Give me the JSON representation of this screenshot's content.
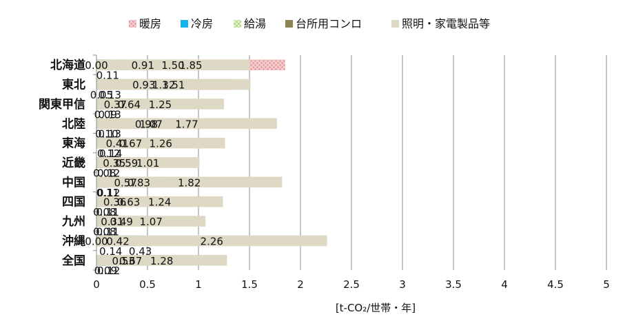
{
  "chart_data": {
    "type": "bar",
    "orientation": "horizontal",
    "stacked": true,
    "categories": [
      "北海道",
      "東北",
      "関東甲信",
      "北陸",
      "東海",
      "近畿",
      "中国",
      "四国",
      "九州",
      "沖縄",
      "全国"
    ],
    "series": [
      {
        "name": "暖房",
        "values": [
          1.85,
          1.32,
          0.37,
          1.07,
          0.41,
          0.35,
          0.57,
          0.36,
          0.31,
          0.0,
          0.53
        ],
        "color": "#e8a3a6",
        "pattern": "dots"
      },
      {
        "name": "冷房",
        "values": [
          0.0,
          0.05,
          0.09,
          0.1,
          0.12,
          0.08,
          0.11,
          0.08,
          0.08,
          0.43,
          0.09
        ],
        "color": "#12b3e8",
        "pattern": "solid"
      },
      {
        "name": "給湯",
        "values": [
          0.91,
          0.93,
          0.64,
          0.98,
          0.67,
          0.59,
          0.83,
          0.63,
          0.49,
          0.42,
          0.67
        ],
        "color": "#c8e6a4",
        "pattern": "checker"
      },
      {
        "name": "台所用コンロ",
        "values": [
          0.11,
          0.13,
          0.13,
          0.13,
          0.14,
          0.12,
          0.12,
          0.11,
          0.11,
          0.14,
          0.12
        ],
        "color": "#8c8452",
        "pattern": "solid"
      },
      {
        "name": "照明・家電製品等",
        "values": [
          1.5,
          1.51,
          1.25,
          1.77,
          1.26,
          1.01,
          1.82,
          1.24,
          1.07,
          2.26,
          1.28
        ],
        "color": "#ddd9c4",
        "pattern": "solid"
      }
    ],
    "xlim": [
      0,
      5
    ],
    "xticks": [
      0,
      0.5,
      1,
      1.5,
      2,
      2.5,
      3,
      3.5,
      4,
      4.5,
      5
    ],
    "xtick_labels": [
      "0",
      "0.5",
      "1",
      "1.5",
      "2",
      "2.5",
      "3",
      "3.5",
      "4",
      "4.5",
      "5"
    ],
    "xlabel": "[t-CO₂/世帯・年]",
    "ylabel": "",
    "title": "",
    "grid": "vertical",
    "legend_position": "top",
    "data_labels": true
  }
}
